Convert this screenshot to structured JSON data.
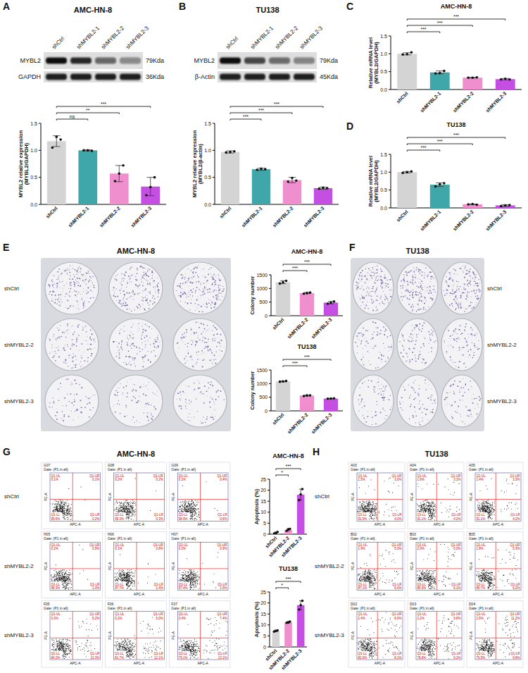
{
  "chart_data": [
    {
      "type": "bar",
      "categories": [
        "shCtrl",
        "shMYBL2-1",
        "shMYBL2-2",
        "shMYBL2-3"
      ],
      "values": [
        1.17,
        1.0,
        0.57,
        0.33
      ],
      "errors": [
        0.1,
        0.01,
        0.15,
        0.17
      ],
      "points": [
        [
          1.05,
          1.25,
          1.2
        ],
        [
          1.0,
          1.0,
          0.99
        ],
        [
          0.43,
          0.57,
          0.72
        ],
        [
          0.17,
          0.32,
          0.5
        ]
      ],
      "colors": [
        "#d4d4d4",
        "#3fa7a9",
        "#ef8fcd",
        "#c64fe3"
      ],
      "y_label": "MYBL2 relative expression (MYBL2/GAPDH)",
      "ylim": [
        0,
        1.5
      ],
      "yticks": [
        {
          "value": 0,
          "label": "0.0"
        },
        0.5,
        {
          "value": 1,
          "label": "1.0"
        },
        1.5
      ],
      "significance": [
        {
          "label": "ns",
          "compare": [
            0,
            1
          ]
        },
        {
          "label": "**",
          "compare": [
            0,
            2
          ]
        },
        {
          "label": "***",
          "compare": [
            0,
            3
          ]
        }
      ]
    },
    {
      "type": "bar",
      "categories": [
        "shCtrl",
        "shMYBL2-1",
        "shMYBL2-2",
        "shMYBL2-3"
      ],
      "values": [
        0.97,
        0.65,
        0.45,
        0.3
      ],
      "errors": [
        0.02,
        0.02,
        0.05,
        0.02
      ],
      "points": [
        [
          0.96,
          0.97,
          0.98
        ],
        [
          0.64,
          0.66,
          0.65
        ],
        [
          0.42,
          0.49,
          0.44
        ],
        [
          0.29,
          0.31,
          0.3
        ]
      ],
      "colors": [
        "#d4d4d4",
        "#3fa7a9",
        "#ef8fcd",
        "#c64fe3"
      ],
      "y_label": "MYBL2 relative expression (MYBL2/β-actin)",
      "ylim": [
        0,
        1.5
      ],
      "yticks": [
        {
          "value": 0,
          "label": "0.0"
        },
        0.5,
        {
          "value": 1,
          "label": "1.0"
        },
        1.5
      ],
      "significance": [
        {
          "label": "***",
          "compare": [
            0,
            1
          ]
        },
        {
          "label": "***",
          "compare": [
            0,
            2
          ]
        },
        {
          "label": "***",
          "compare": [
            0,
            3
          ]
        }
      ]
    },
    {
      "type": "bar",
      "title": "AMC-HN-8",
      "categories": [
        "shCtrl",
        "shMYBL2-1",
        "shMYBL2-2",
        "shMYBL2-3"
      ],
      "values": [
        1.0,
        0.48,
        0.33,
        0.29
      ],
      "errors": [
        0.03,
        0.04,
        0.01,
        0.02
      ],
      "points": [
        [
          0.98,
          0.99,
          1.04
        ],
        [
          0.45,
          0.46,
          0.52
        ],
        [
          0.33,
          0.33,
          0.34
        ],
        [
          0.28,
          0.3,
          0.28
        ]
      ],
      "colors": [
        "#d4d4d4",
        "#3fa7a9",
        "#ef8fcd",
        "#c64fe3"
      ],
      "y_label": "Relative mRNA level (MYBL2/GAPDH)",
      "ylim": [
        0,
        1.5
      ],
      "yticks": [
        {
          "value": 0,
          "label": "0.0"
        },
        0.5,
        {
          "value": 1,
          "label": "1.0"
        },
        1.5
      ],
      "significance": [
        {
          "label": "***",
          "compare": [
            0,
            1
          ]
        },
        {
          "label": "***",
          "compare": [
            0,
            2
          ]
        },
        {
          "label": "***",
          "compare": [
            0,
            3
          ]
        }
      ]
    },
    {
      "type": "bar",
      "title": "TU138",
      "categories": [
        "shCtrl",
        "shMYBL2-1",
        "shMYBL2-2",
        "shMYBL2-3"
      ],
      "values": [
        1.0,
        0.65,
        0.1,
        0.07
      ],
      "errors": [
        0.02,
        0.05,
        0.01,
        0.02
      ],
      "points": [
        [
          0.98,
          1.0,
          1.02
        ],
        [
          0.6,
          0.66,
          0.69
        ],
        [
          0.1,
          0.11,
          0.09
        ],
        [
          0.05,
          0.07,
          0.08
        ]
      ],
      "colors": [
        "#d4d4d4",
        "#3fa7a9",
        "#ef8fcd",
        "#c64fe3"
      ],
      "y_label": "Relative mRNA level (MYBL2/GAPDH)",
      "ylim": [
        0,
        1.5
      ],
      "yticks": [
        {
          "value": 0,
          "label": "0.0"
        },
        0.5,
        {
          "value": 1,
          "label": "1.0"
        },
        1.5
      ],
      "significance": [
        {
          "label": "***",
          "compare": [
            0,
            1
          ]
        },
        {
          "label": "***",
          "compare": [
            0,
            2
          ]
        },
        {
          "label": "***",
          "compare": [
            0,
            3
          ]
        }
      ]
    },
    {
      "type": "bar",
      "title": "AMC-HN-8",
      "categories": [
        "shCtrl",
        "shMYBL2-2",
        "shMYBL2-3"
      ],
      "values": [
        1230,
        830,
        480
      ],
      "errors": [
        55,
        25,
        45
      ],
      "points": [
        [
          1180,
          1230,
          1280
        ],
        [
          810,
          830,
          850
        ],
        [
          440,
          480,
          520
        ]
      ],
      "colors": [
        "#d4d4d4",
        "#ef8fcd",
        "#c64fe3"
      ],
      "y_label": "Colony number",
      "ylim": [
        0,
        1500
      ],
      "yticks": [
        0,
        500,
        1000,
        1500
      ],
      "significance": [
        {
          "label": "***",
          "compare": [
            0,
            1
          ]
        },
        {
          "label": "***",
          "compare": [
            0,
            2
          ]
        }
      ]
    },
    {
      "type": "bar",
      "title": "TU138",
      "categories": [
        "shCtrl",
        "shMYBL2-2",
        "shMYBL2-3"
      ],
      "values": [
        1080,
        560,
        450
      ],
      "errors": [
        15,
        15,
        10
      ],
      "points": [
        [
          1070,
          1080,
          1095
        ],
        [
          545,
          565,
          570
        ],
        [
          445,
          450,
          460
        ]
      ],
      "colors": [
        "#d4d4d4",
        "#ef8fcd",
        "#c64fe3"
      ],
      "y_label": "Colony number",
      "ylim": [
        0,
        1500
      ],
      "yticks": [
        0,
        500,
        1000,
        1500
      ],
      "significance": [
        {
          "label": "***",
          "compare": [
            0,
            1
          ]
        },
        {
          "label": "***",
          "compare": [
            0,
            2
          ]
        }
      ]
    },
    {
      "type": "bar",
      "title": "AMC-HN-8",
      "categories": [
        "shCtrl",
        "shMYBL2-2",
        "shMYBL2-3"
      ],
      "values": [
        0.6,
        2.0,
        18
      ],
      "errors": [
        0.4,
        0.5,
        2.5
      ],
      "points": [
        [
          0.3,
          0.5,
          1.0
        ],
        [
          1.5,
          2.2,
          2.4
        ],
        [
          15.5,
          18.1,
          20.5
        ]
      ],
      "colors": [
        "#d4d4d4",
        "#ef8fcd",
        "#c64fe3"
      ],
      "y_label": "Apoptosis (%)",
      "ylim": [
        0,
        25
      ],
      "yticks": [
        0,
        5,
        10,
        15,
        20,
        25
      ],
      "significance": [
        {
          "label": "*",
          "compare": [
            0,
            1
          ]
        },
        {
          "label": "***",
          "compare": [
            0,
            2
          ]
        }
      ]
    },
    {
      "type": "bar",
      "title": "TU138",
      "categories": [
        "shCtrl",
        "shMYBL2-2",
        "shMYBL2-3"
      ],
      "values": [
        7.3,
        11.2,
        19
      ],
      "errors": [
        0.3,
        0.4,
        2.0
      ],
      "points": [
        [
          7.0,
          7.3,
          7.5
        ],
        [
          11.0,
          11.1,
          11.5
        ],
        [
          17,
          19,
          21
        ]
      ],
      "colors": [
        "#d4d4d4",
        "#ef8fcd",
        "#c64fe3"
      ],
      "y_label": "Apoptosis (%)",
      "ylim": [
        0,
        25
      ],
      "yticks": [
        0,
        5,
        10,
        15,
        20,
        25
      ],
      "significance": [
        {
          "label": "*",
          "compare": [
            0,
            1
          ]
        },
        {
          "label": "***",
          "compare": [
            0,
            2
          ]
        }
      ]
    }
  ],
  "figure": {
    "panel_letters": [
      "A",
      "B",
      "C",
      "D",
      "E",
      "F",
      "G",
      "H"
    ],
    "blots": [
      {
        "title": "AMC-HN-8",
        "lanes": [
          "shCtrl",
          "shMYBL2-1",
          "shMYBL2-2",
          "shMYBL2-3"
        ],
        "rows": [
          {
            "name": "MYBL2",
            "size": "79Kda"
          },
          {
            "name": "GAPDH",
            "size": "36Kda"
          }
        ]
      },
      {
        "title": "TU138",
        "lanes": [
          "shCtrl",
          "shMYBL2-1",
          "shMYBL2-2",
          "shMYBL2-3"
        ],
        "rows": [
          {
            "name": "MYBL2",
            "size": "79Kda"
          },
          {
            "name": "β-Actin",
            "size": "45Kda"
          }
        ]
      }
    ],
    "plates": [
      {
        "title": "AMC-HN-8",
        "rows": [
          "shCtrl",
          "shMYBL2-2",
          "shMYBL2-3"
        ]
      },
      {
        "title": "TU138",
        "rows": [
          "shCtrl",
          "shMYBL2-2",
          "shMYBL2-3"
        ]
      }
    ],
    "flow": [
      {
        "title": "AMC-HN-8",
        "rows": [
          "shCtrl",
          "shMYBL2-2",
          "shMYBL2-3"
        ],
        "gate": "Gate: (P1 in all)",
        "x_label": "APC-A",
        "y_label": "PE-A",
        "quadrants": [
          "Q1-UL",
          "Q1-UR",
          "Q1-LL",
          "Q1-LR"
        ],
        "plots": [
          [
            {
              "id": "G07",
              "pct": [
                "0.1%",
                "0.1%",
                "99.6%",
                "0.2%"
              ]
            },
            {
              "id": "G08",
              "pct": [
                "0.2%",
                "0.2%",
                "99.3%",
                "0.3%"
              ]
            },
            {
              "id": "G09",
              "pct": [
                "0.1%",
                "0.4%",
                "98.9%",
                "0.6%"
              ]
            }
          ],
          [
            {
              "id": "H05",
              "pct": [
                "0.2%",
                "0.5%",
                "98.3%",
                "1.0%"
              ]
            },
            {
              "id": "H06",
              "pct": [
                "0.1%",
                "0.8%",
                "97.7%",
                "1.4%"
              ]
            },
            {
              "id": "H07",
              "pct": [
                "0.2%",
                "0.9%",
                "97.4%",
                "1.5%"
              ]
            }
          ],
          [
            {
              "id": "F05",
              "pct": [
                "0.3%",
                "5.2%",
                "84.2%",
                "10.3%"
              ]
            },
            {
              "id": "F06",
              "pct": [
                "0.2%",
                "6.0%",
                "81.7%",
                "12.1%"
              ]
            },
            {
              "id": "F07",
              "pct": [
                "0.4%",
                "7.4%",
                "79.1%",
                "13.1%"
              ]
            }
          ]
        ]
      },
      {
        "title": "TU138",
        "rows": [
          "shCtrl",
          "shMYBL2-2",
          "shMYBL2-3"
        ],
        "gate": "Gate: (P1 in all)",
        "x_label": "APC-A",
        "y_label": "PE-A",
        "quadrants": [
          "Q1-UL",
          "Q1-UR",
          "Q1-LL",
          "Q1-LR"
        ],
        "plots": [
          [
            {
              "id": "A03",
              "pct": [
                "1.5%",
                "3.0%",
                "91.5%",
                "4.0%"
              ]
            },
            {
              "id": "A04",
              "pct": [
                "1.6%",
                "3.1%",
                "91.1%",
                "4.2%"
              ]
            },
            {
              "id": "A05",
              "pct": [
                "1.4%",
                "3.3%",
                "91.1%",
                "4.2%"
              ]
            }
          ],
          [
            {
              "id": "B02",
              "pct": [
                "1.9%",
                "5.0%",
                "87.1%",
                "6.0%"
              ]
            },
            {
              "id": "B03",
              "pct": [
                "2.0%",
                "5.0%",
                "86.9%",
                "6.1%"
              ]
            },
            {
              "id": "B05",
              "pct": [
                "1.8%",
                "5.3%",
                "86.7%",
                "6.2%"
              ]
            }
          ],
          [
            {
              "id": "D02",
              "pct": [
                "2.4%",
                "8.9%",
                "80.6%",
                "8.1%"
              ]
            },
            {
              "id": "D03",
              "pct": [
                "2.2%",
                "9.8%",
                "78.8%",
                "9.2%"
              ]
            },
            {
              "id": "D04",
              "pct": [
                "2.5%",
                "11.2%",
                "76.5%",
                "9.8%"
              ]
            }
          ]
        ]
      }
    ]
  }
}
